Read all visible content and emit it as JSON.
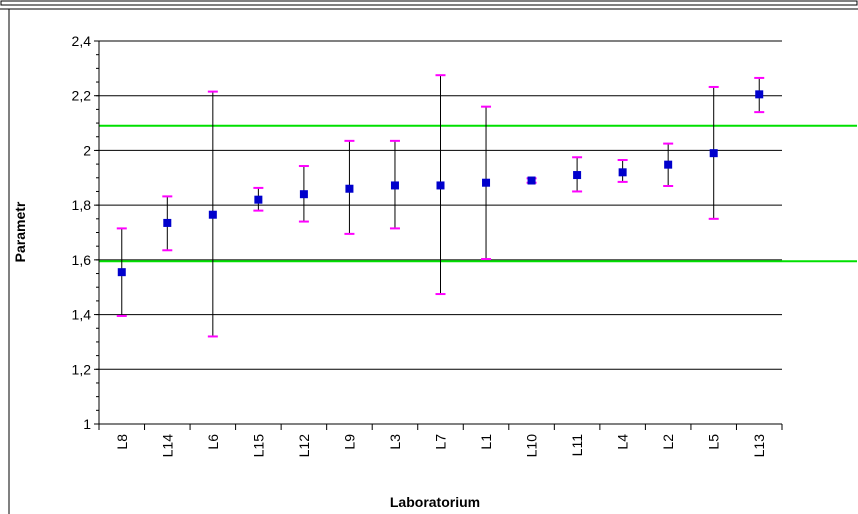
{
  "chart_data": {
    "type": "scatter",
    "title": "",
    "xlabel": "Laboratorium",
    "ylabel": "Parametr",
    "ylim": [
      1,
      2.4
    ],
    "yticks": [
      "1",
      "1,2",
      "1,4",
      "1,6",
      "1,8",
      "2",
      "2,2",
      "2,4"
    ],
    "ytick_values": [
      1,
      1.2,
      1.4,
      1.6,
      1.8,
      2.0,
      2.2,
      2.4
    ],
    "grid": true,
    "categories": [
      "L8",
      "L14",
      "L6",
      "L15",
      "L12",
      "L9",
      "L3",
      "L7",
      "L1",
      "L10",
      "L11",
      "L4",
      "L2",
      "L5",
      "L13"
    ],
    "series": [
      {
        "values": [
          1.555,
          1.735,
          1.765,
          1.82,
          1.84,
          1.86,
          1.872,
          1.872,
          1.882,
          1.89,
          1.91,
          1.92,
          1.948,
          1.99,
          2.205
        ],
        "lower": [
          1.395,
          1.635,
          1.32,
          1.78,
          1.74,
          1.695,
          1.715,
          1.475,
          1.603,
          1.882,
          1.85,
          1.885,
          1.87,
          1.75,
          2.14
        ],
        "upper": [
          1.715,
          1.832,
          2.215,
          1.863,
          1.943,
          2.035,
          2.035,
          2.275,
          2.16,
          1.898,
          1.975,
          1.965,
          2.025,
          2.232,
          2.265
        ]
      }
    ],
    "reference_lines": [
      2.09,
      1.595
    ],
    "colors": {
      "marker": "#0000CC",
      "error_cap": "#FF00FF",
      "error_line": "#000000",
      "reference_line": "#00E000",
      "grid": "#000000"
    }
  }
}
